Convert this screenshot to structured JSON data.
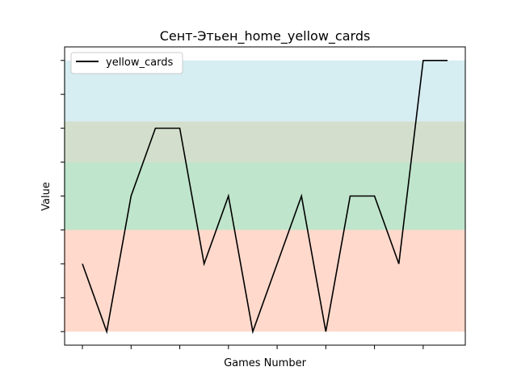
{
  "chart_data": {
    "type": "line",
    "title": "Сент-Этьен_home_yellow_cards",
    "xlabel": "Games Number",
    "ylabel": "Value",
    "x": [
      1,
      2,
      3,
      4,
      5,
      6,
      7,
      8,
      9,
      10,
      11,
      12,
      13,
      14,
      15,
      16
    ],
    "series": [
      {
        "name": "yellow_cards",
        "color": "#000000",
        "values": [
          2,
          0,
          4,
          6,
          6,
          2,
          4,
          0,
          2,
          4,
          0,
          4,
          4,
          2,
          8,
          8
        ]
      }
    ],
    "xlim": [
      0.27,
      16.73
    ],
    "ylim": [
      -0.4,
      8.4
    ],
    "xticks": [
      1,
      3,
      5,
      7,
      9,
      11,
      13,
      15
    ],
    "yticks": [
      0,
      1,
      2,
      3,
      4,
      5,
      6,
      7,
      8
    ],
    "tick_labels_visible": false,
    "bands": [
      {
        "from": 0,
        "to": 3,
        "color": "#ff9f80",
        "opacity": 0.4
      },
      {
        "from": 3,
        "to": 5,
        "color": "#5fbf7f",
        "opacity": 0.4
      },
      {
        "from": 5,
        "to": 6.2,
        "color": "#90b080",
        "opacity": 0.4
      },
      {
        "from": 6.2,
        "to": 8,
        "color": "#a3d7e3",
        "opacity": 0.45
      }
    ],
    "band_x_range": [
      1,
      16.73
    ],
    "legend": "top-left",
    "grid": false
  }
}
